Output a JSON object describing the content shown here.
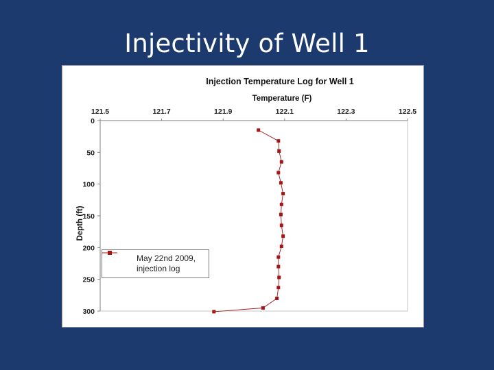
{
  "slide": {
    "title": "Injectivity of Well 1"
  },
  "chart_data": {
    "type": "line",
    "title": "Injection Temperature Log for Well 1",
    "xlabel": "Temperature (F)",
    "ylabel": "Depth (ft)",
    "xlim": [
      121.5,
      122.5
    ],
    "ylim": [
      0,
      300
    ],
    "x_ticks": [
      "121.5",
      "121.7",
      "121.9",
      "122.1",
      "122.3",
      "122.5"
    ],
    "y_ticks": [
      "0",
      "50",
      "100",
      "150",
      "200",
      "250",
      "300"
    ],
    "series": [
      {
        "name": "May 22nd 2009, injection log",
        "color": "#a51515",
        "points": [
          {
            "t": 122.015,
            "d": 15
          },
          {
            "t": 122.08,
            "d": 32
          },
          {
            "t": 122.082,
            "d": 48
          },
          {
            "t": 122.09,
            "d": 65
          },
          {
            "t": 122.08,
            "d": 82
          },
          {
            "t": 122.088,
            "d": 98
          },
          {
            "t": 122.095,
            "d": 115
          },
          {
            "t": 122.09,
            "d": 132
          },
          {
            "t": 122.088,
            "d": 148
          },
          {
            "t": 122.09,
            "d": 165
          },
          {
            "t": 122.095,
            "d": 182
          },
          {
            "t": 122.09,
            "d": 198
          },
          {
            "t": 122.08,
            "d": 215
          },
          {
            "t": 122.08,
            "d": 230
          },
          {
            "t": 122.082,
            "d": 247
          },
          {
            "t": 122.08,
            "d": 263
          },
          {
            "t": 122.075,
            "d": 280
          },
          {
            "t": 122.03,
            "d": 295
          },
          {
            "t": 121.87,
            "d": 301
          }
        ]
      }
    ],
    "legend": {
      "line1": "May 22nd 2009,",
      "line2": "injection log",
      "position": "bottom-left"
    }
  }
}
